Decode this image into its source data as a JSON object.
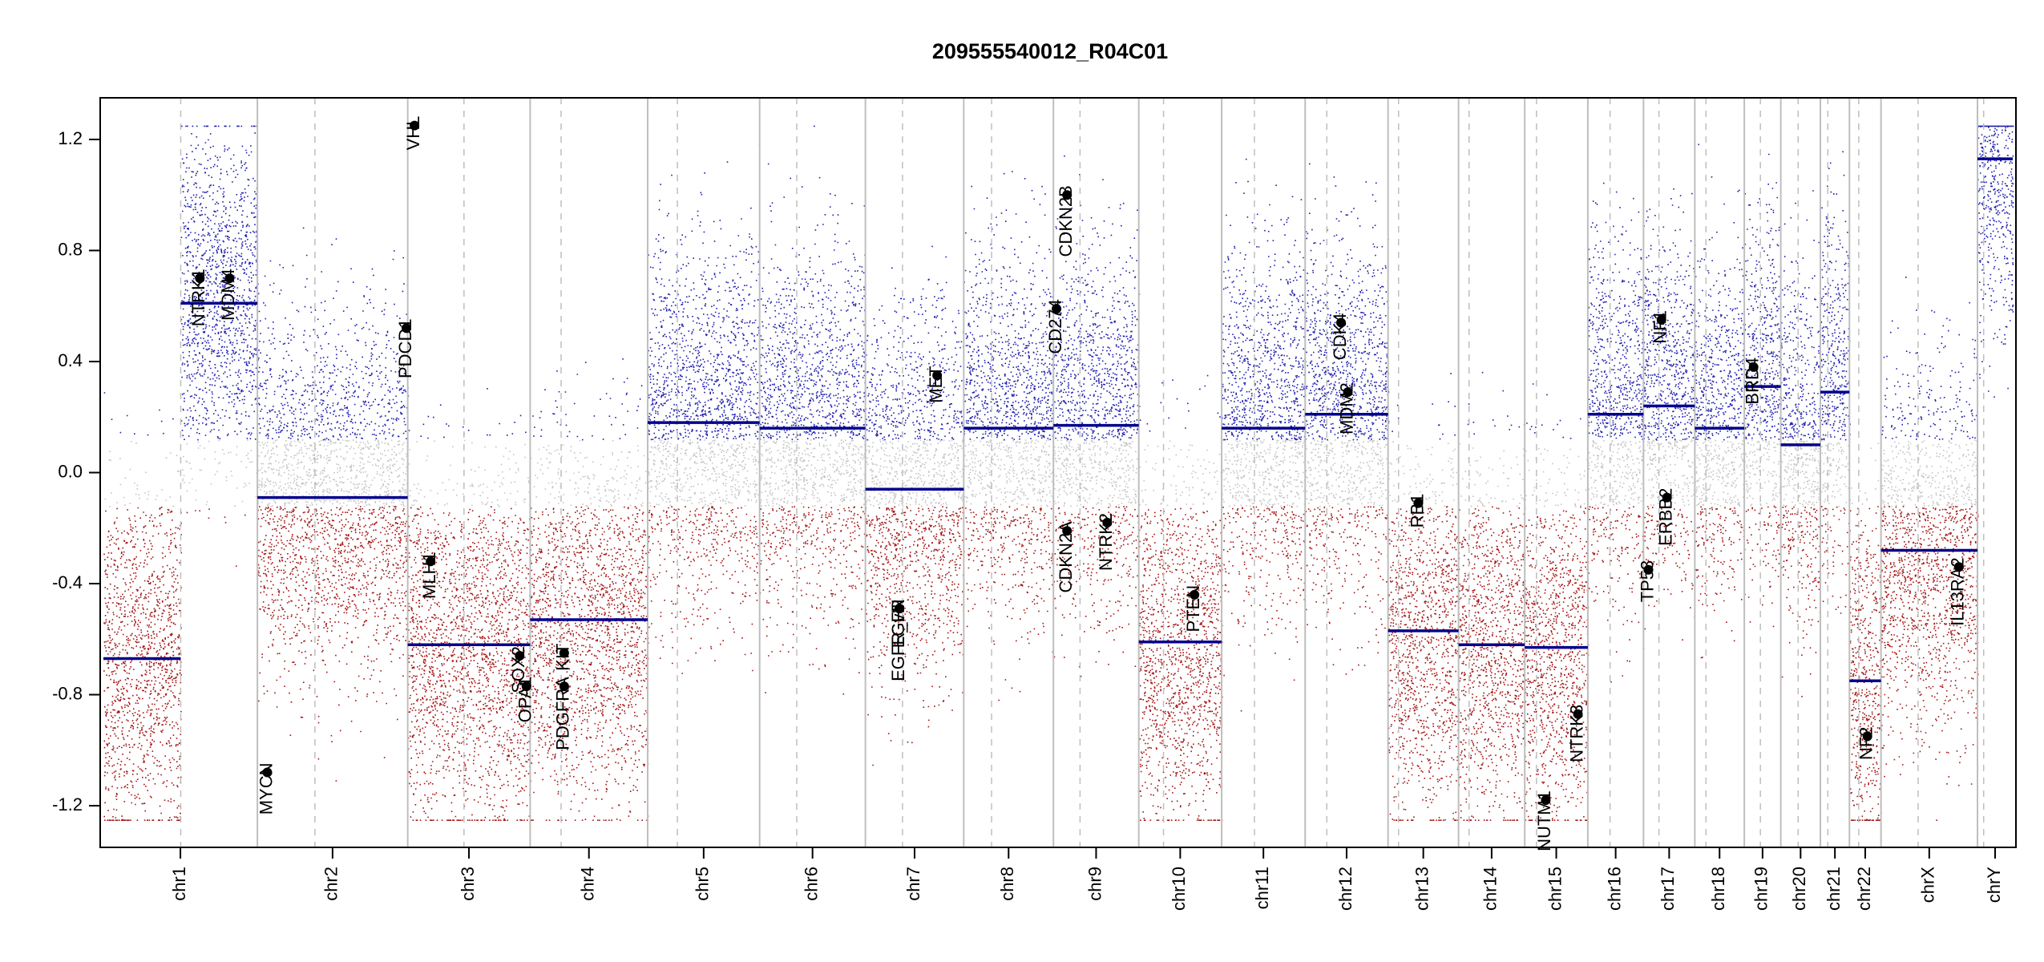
{
  "chart_data": {
    "type": "scatter",
    "title": "209555540012_R04C01",
    "xlabel": "",
    "ylabel": "",
    "ylim": [
      -1.35,
      1.35
    ],
    "y_ticks": [
      {
        "value": 1.2,
        "label": "1.2"
      },
      {
        "value": 0.8,
        "label": "0.8"
      },
      {
        "value": 0.4,
        "label": "0.4"
      },
      {
        "value": 0.0,
        "label": "0.0"
      },
      {
        "value": -0.4,
        "label": "-0.4"
      },
      {
        "value": -0.8,
        "label": "-0.8"
      },
      {
        "value": -1.2,
        "label": "-1.2"
      }
    ],
    "clip_value": 1.25,
    "colors": {
      "gain": "#1f1fae",
      "loss": "#a31515",
      "neutral": "#c4c4c4",
      "segment": "#00008b",
      "boundary": "#bebebe",
      "point": "#000000"
    },
    "chromosomes": [
      {
        "name": "chr1",
        "start": 0,
        "end": 249,
        "centromere": 125
      },
      {
        "name": "chr2",
        "start": 249,
        "end": 492,
        "centromere": 93
      },
      {
        "name": "chr3",
        "start": 492,
        "end": 690,
        "centromere": 91
      },
      {
        "name": "chr4",
        "start": 690,
        "end": 880,
        "centromere": 50
      },
      {
        "name": "chr5",
        "start": 880,
        "end": 1061,
        "centromere": 48
      },
      {
        "name": "chr6",
        "start": 1061,
        "end": 1232,
        "centromere": 60
      },
      {
        "name": "chr7",
        "start": 1232,
        "end": 1391,
        "centromere": 60
      },
      {
        "name": "chr8",
        "start": 1391,
        "end": 1536,
        "centromere": 45
      },
      {
        "name": "chr9",
        "start": 1536,
        "end": 1674,
        "centromere": 43
      },
      {
        "name": "chr10",
        "start": 1674,
        "end": 1808,
        "centromere": 40
      },
      {
        "name": "chr11",
        "start": 1808,
        "end": 1943,
        "centromere": 53
      },
      {
        "name": "chr12",
        "start": 1943,
        "end": 2077,
        "centromere": 35
      },
      {
        "name": "chr13",
        "start": 2077,
        "end": 2191,
        "centromere": 17
      },
      {
        "name": "chr14",
        "start": 2191,
        "end": 2298,
        "centromere": 17
      },
      {
        "name": "chr15",
        "start": 2298,
        "end": 2400,
        "centromere": 19
      },
      {
        "name": "chr16",
        "start": 2400,
        "end": 2490,
        "centromere": 36
      },
      {
        "name": "chr17",
        "start": 2490,
        "end": 2573,
        "centromere": 25
      },
      {
        "name": "chr18",
        "start": 2573,
        "end": 2653,
        "centromere": 18
      },
      {
        "name": "chr19",
        "start": 2653,
        "end": 2712,
        "centromere": 26
      },
      {
        "name": "chr20",
        "start": 2712,
        "end": 2776,
        "centromere": 28
      },
      {
        "name": "chr21",
        "start": 2776,
        "end": 2823,
        "centromere": 12
      },
      {
        "name": "chr22",
        "start": 2823,
        "end": 2874,
        "centromere": 15
      },
      {
        "name": "chrX",
        "start": 2874,
        "end": 3030,
        "centromere": 60
      },
      {
        "name": "chrY",
        "start": 3030,
        "end": 3087,
        "centromere": 10
      }
    ],
    "segments": [
      {
        "chrom": "chr1",
        "x0": 0,
        "x1": 125,
        "y": -0.67
      },
      {
        "chrom": "chr1",
        "x0": 125,
        "x1": 249,
        "y": 0.61
      },
      {
        "chrom": "chr2",
        "x0": 249,
        "x1": 492,
        "y": -0.09
      },
      {
        "chrom": "chr3",
        "x0": 492,
        "x1": 690,
        "y": -0.62
      },
      {
        "chrom": "chr4",
        "x0": 690,
        "x1": 880,
        "y": -0.53
      },
      {
        "chrom": "chr5",
        "x0": 880,
        "x1": 1061,
        "y": 0.18
      },
      {
        "chrom": "chr6",
        "x0": 1061,
        "x1": 1232,
        "y": 0.16
      },
      {
        "chrom": "chr7",
        "x0": 1232,
        "x1": 1391,
        "y": -0.06
      },
      {
        "chrom": "chr8",
        "x0": 1391,
        "x1": 1536,
        "y": 0.16
      },
      {
        "chrom": "chr9",
        "x0": 1536,
        "x1": 1674,
        "y": 0.17
      },
      {
        "chrom": "chr10",
        "x0": 1674,
        "x1": 1808,
        "y": -0.61
      },
      {
        "chrom": "chr11",
        "x0": 1808,
        "x1": 1943,
        "y": 0.16
      },
      {
        "chrom": "chr12",
        "x0": 1943,
        "x1": 2077,
        "y": 0.21
      },
      {
        "chrom": "chr13",
        "x0": 2077,
        "x1": 2191,
        "y": -0.57
      },
      {
        "chrom": "chr14",
        "x0": 2191,
        "x1": 2298,
        "y": -0.62
      },
      {
        "chrom": "chr15",
        "x0": 2298,
        "x1": 2400,
        "y": -0.63
      },
      {
        "chrom": "chr16",
        "x0": 2400,
        "x1": 2490,
        "y": 0.21
      },
      {
        "chrom": "chr17",
        "x0": 2490,
        "x1": 2573,
        "y": 0.24
      },
      {
        "chrom": "chr18",
        "x0": 2573,
        "x1": 2653,
        "y": 0.16
      },
      {
        "chrom": "chr19",
        "x0": 2653,
        "x1": 2712,
        "y": 0.31
      },
      {
        "chrom": "chr20",
        "x0": 2712,
        "x1": 2776,
        "y": 0.1
      },
      {
        "chrom": "chr21",
        "x0": 2776,
        "x1": 2823,
        "y": 0.29
      },
      {
        "chrom": "chr22",
        "x0": 2823,
        "x1": 2874,
        "y": -0.75
      },
      {
        "chrom": "chrX",
        "x0": 2874,
        "x1": 3030,
        "y": -0.28
      },
      {
        "chrom": "chrY",
        "x0": 3030,
        "x1": 3087,
        "y": 1.13
      }
    ],
    "genes": [
      {
        "name": "NTRK1",
        "x": 156,
        "y": 0.7
      },
      {
        "name": "MDM4",
        "x": 204,
        "y": 0.7
      },
      {
        "name": "MYCN",
        "x": 265,
        "y": -1.08
      },
      {
        "name": "VHL",
        "x": 503,
        "y": 1.25
      },
      {
        "name": "PDCD1",
        "x": 490,
        "y": 0.52
      },
      {
        "name": "MLH1",
        "x": 529,
        "y": -0.32
      },
      {
        "name": "SOX2",
        "x": 673,
        "y": -0.66
      },
      {
        "name": "OPA1",
        "x": 684,
        "y": -0.77
      },
      {
        "name": "KIT",
        "x": 745,
        "y": -0.65
      },
      {
        "name": "PDGFRA",
        "x": 745,
        "y": -0.77
      },
      {
        "name": "EGFR",
        "x": 1287,
        "y": -0.49
      },
      {
        "name": "EGFR_vIII",
        "x": 1287,
        "y": -0.49
      },
      {
        "name": "MET",
        "x": 1348,
        "y": 0.35
      },
      {
        "name": "CD274",
        "x": 1541,
        "y": 0.59
      },
      {
        "name": "CDKN2B",
        "x": 1558,
        "y": 1.0
      },
      {
        "name": "CDKN2A",
        "x": 1558,
        "y": -0.21
      },
      {
        "name": "NTRK2",
        "x": 1623,
        "y": -0.18
      },
      {
        "name": "PTEN",
        "x": 1764,
        "y": -0.44
      },
      {
        "name": "CDK4",
        "x": 2001,
        "y": 0.54
      },
      {
        "name": "MDM2",
        "x": 2012,
        "y": 0.29
      },
      {
        "name": "RB1",
        "x": 2126,
        "y": -0.11
      },
      {
        "name": "NUTM1",
        "x": 2332,
        "y": -1.18
      },
      {
        "name": "NTRK3",
        "x": 2384,
        "y": -0.87
      },
      {
        "name": "TP53",
        "x": 2498,
        "y": -0.35
      },
      {
        "name": "ERBB2",
        "x": 2528,
        "y": -0.09
      },
      {
        "name": "NF1",
        "x": 2519,
        "y": 0.55
      },
      {
        "name": "BRD4",
        "x": 2668,
        "y": 0.38
      },
      {
        "name": "NF2",
        "x": 2852,
        "y": -0.95
      },
      {
        "name": "IL13RA2",
        "x": 3000,
        "y": -0.34
      }
    ],
    "grid": false,
    "legend": "none"
  }
}
